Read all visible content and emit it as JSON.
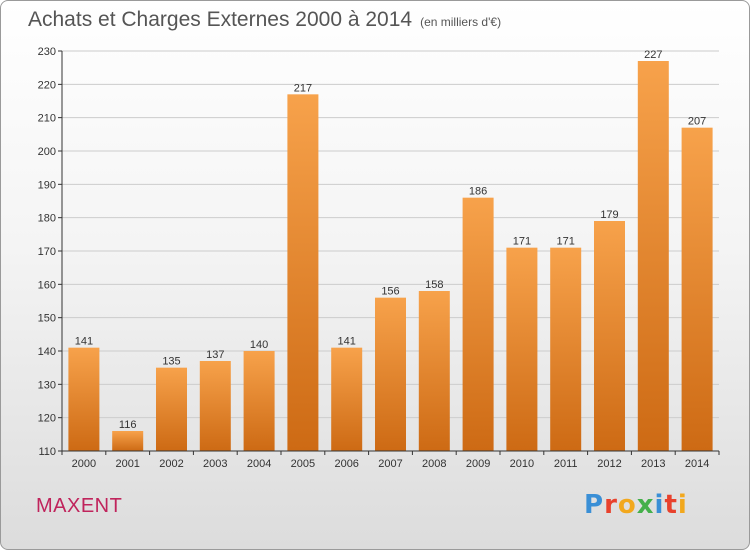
{
  "header": {
    "title": "Achats et Charges Externes 2000 à 2014",
    "subtitle": "(en milliers d'€)"
  },
  "footer": {
    "commune": "MAXENT",
    "logo_text": "Proxiti",
    "logo_colors": [
      "#3a8fd6",
      "#e8412c",
      "#f2a81d",
      "#44b04a",
      "#3a8fd6",
      "#e8412c",
      "#f2a81d"
    ]
  },
  "colors": {
    "bar_light": "#f7a24b",
    "bar_dark": "#cd6a14",
    "grid": "#cccccc",
    "axis": "#333333"
  },
  "chart_data": {
    "type": "bar",
    "title": "Achats et Charges Externes 2000 à 2014",
    "subtitle": "(en milliers d'€)",
    "xlabel": "",
    "ylabel": "",
    "categories": [
      "2000",
      "2001",
      "2002",
      "2003",
      "2004",
      "2005",
      "2006",
      "2007",
      "2008",
      "2009",
      "2010",
      "2011",
      "2012",
      "2013",
      "2014"
    ],
    "values": [
      141,
      116,
      135,
      137,
      140,
      217,
      141,
      156,
      158,
      186,
      171,
      171,
      179,
      227,
      207
    ],
    "ylim": [
      110,
      230
    ],
    "yticks": [
      110,
      120,
      130,
      140,
      150,
      160,
      170,
      180,
      190,
      200,
      210,
      220,
      230
    ],
    "grid": true,
    "legend": "none"
  }
}
